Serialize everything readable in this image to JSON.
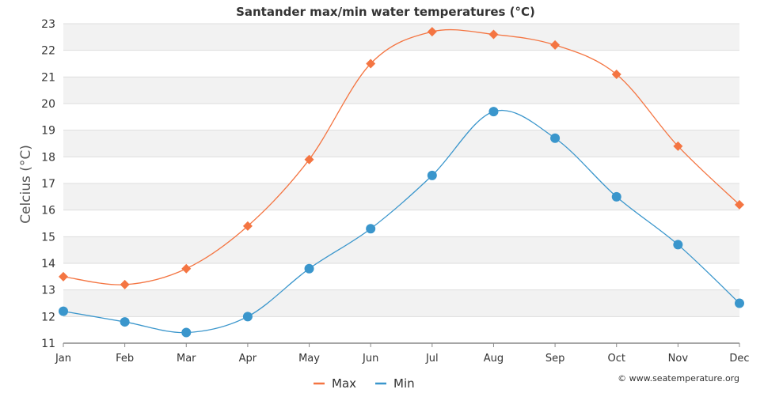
{
  "chart_data": {
    "type": "line",
    "title": "Santander max/min water temperatures (°C)",
    "xlabel": "",
    "ylabel": "Celcius (°C)",
    "ylim": [
      11,
      23
    ],
    "yticks": [
      11,
      12,
      13,
      14,
      15,
      16,
      17,
      18,
      19,
      20,
      21,
      22,
      23
    ],
    "categories": [
      "Jan",
      "Feb",
      "Mar",
      "Apr",
      "May",
      "Jun",
      "Jul",
      "Aug",
      "Sep",
      "Oct",
      "Nov",
      "Dec"
    ],
    "series": [
      {
        "name": "Max",
        "color": "#f47542",
        "marker": "diamond",
        "values": [
          13.5,
          13.2,
          13.8,
          15.4,
          17.9,
          21.5,
          22.7,
          22.6,
          22.2,
          21.1,
          18.4,
          16.2
        ]
      },
      {
        "name": "Min",
        "color": "#3a96cc",
        "marker": "circle",
        "values": [
          12.2,
          11.8,
          11.4,
          12.0,
          13.8,
          15.3,
          17.3,
          19.7,
          18.7,
          16.5,
          14.7,
          12.5
        ]
      }
    ],
    "grid": "horizontal bands",
    "legend_position": "bottom-center"
  },
  "credit": "© www.seatemperature.org"
}
